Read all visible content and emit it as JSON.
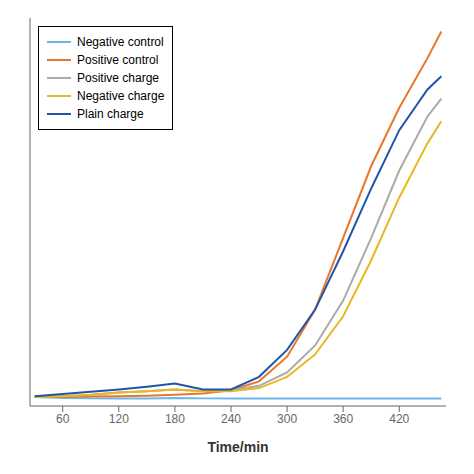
{
  "chart_data": {
    "type": "line",
    "title": "",
    "xlabel": "Time/min",
    "x": [
      30,
      60,
      90,
      120,
      150,
      180,
      210,
      240,
      270,
      300,
      330,
      360,
      390,
      420,
      450,
      465
    ],
    "series": [
      {
        "name": "Negative control",
        "color": "#6BB8E8",
        "values": [
          0.005,
          0.003,
          0.002,
          0.002,
          0.002,
          0.003,
          0.002,
          0.002,
          0.002,
          0.002,
          0.002,
          0.002,
          0.002,
          0.002,
          0.002,
          0.002
        ]
      },
      {
        "name": "Positive control",
        "color": "#E8762B",
        "values": [
          0.005,
          0.005,
          0.006,
          0.007,
          0.008,
          0.01,
          0.013,
          0.02,
          0.04,
          0.095,
          0.2,
          0.36,
          0.52,
          0.65,
          0.76,
          0.82
        ]
      },
      {
        "name": "Positive charge",
        "color": "#AAAAAA",
        "values": [
          0.005,
          0.007,
          0.01,
          0.015,
          0.018,
          0.022,
          0.018,
          0.02,
          0.03,
          0.06,
          0.12,
          0.22,
          0.36,
          0.51,
          0.63,
          0.67
        ]
      },
      {
        "name": "Negative charge",
        "color": "#E8B820",
        "values": [
          0.005,
          0.007,
          0.01,
          0.015,
          0.018,
          0.022,
          0.018,
          0.018,
          0.025,
          0.05,
          0.1,
          0.185,
          0.31,
          0.45,
          0.57,
          0.62
        ]
      },
      {
        "name": "Plain charge",
        "color": "#2255AA",
        "values": [
          0.007,
          0.012,
          0.017,
          0.022,
          0.028,
          0.035,
          0.022,
          0.022,
          0.05,
          0.11,
          0.2,
          0.33,
          0.47,
          0.6,
          0.69,
          0.72
        ]
      }
    ],
    "xlim": [
      25,
      470
    ],
    "xticks": [
      60,
      120,
      180,
      240,
      300,
      360,
      420
    ],
    "ylim": [
      -0.015,
      0.85
    ],
    "yticks": [],
    "tick_labels": "x",
    "legend": "upper left"
  }
}
